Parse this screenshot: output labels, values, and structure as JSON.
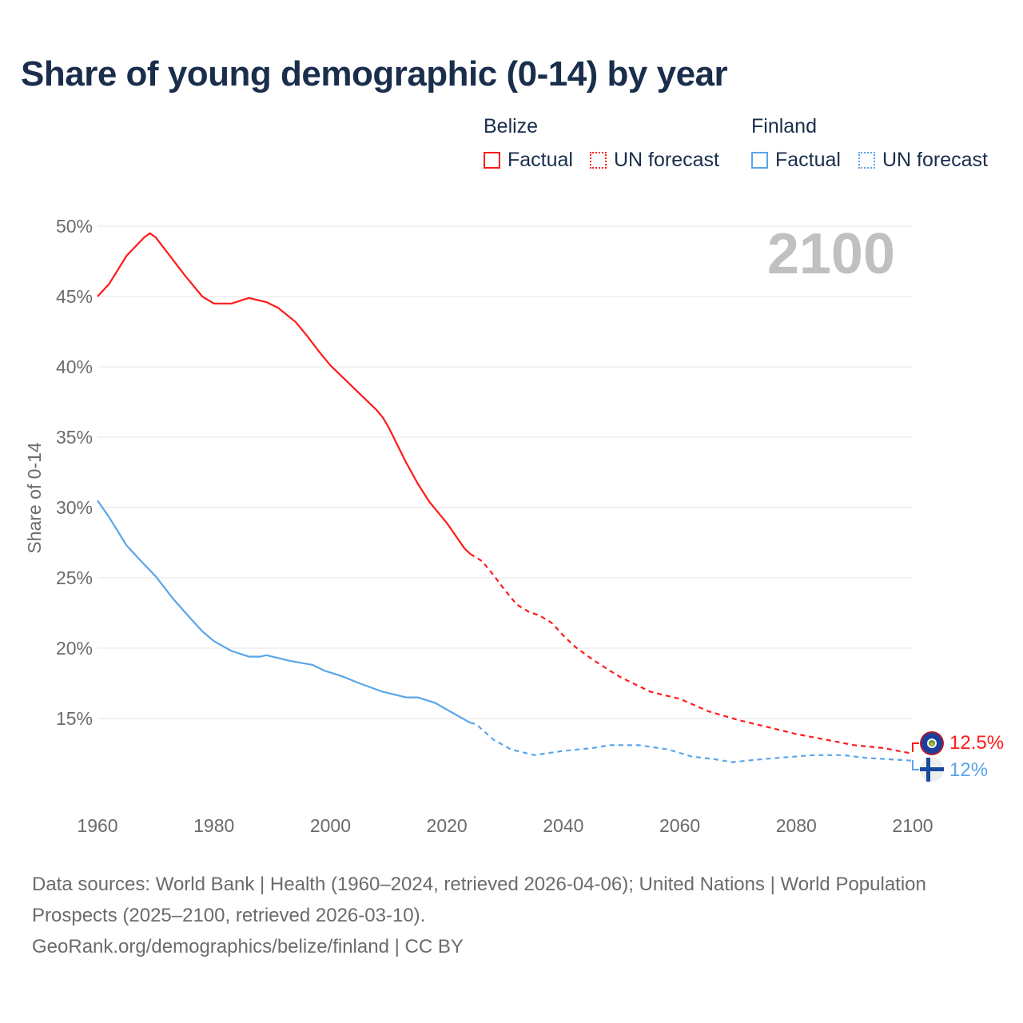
{
  "title": "Share of young demographic (0-14) by year",
  "legend": {
    "groups": [
      {
        "country": "Belize",
        "factual": "Factual",
        "forecast": "UN forecast",
        "color": "#ff1a1a"
      },
      {
        "country": "Finland",
        "factual": "Factual",
        "forecast": "UN forecast",
        "color": "#5aa5ea"
      }
    ]
  },
  "year_display": "2100",
  "end_labels": {
    "belize": "12.5%",
    "finland": "12%"
  },
  "source": {
    "line1": "Data sources: World Bank | Health (1960–2024, retrieved 2026-04-06); United Nations | World Population Prospects (2025–2100, retrieved 2026-03-10).",
    "line2": "GeoRank.org/demographics/belize/finland | CC BY"
  },
  "chart_data": {
    "type": "line",
    "title": "Share of young demographic (0-14) by year",
    "xlabel": "",
    "ylabel": "Share of 0-14",
    "xlim": [
      1960,
      2100
    ],
    "ylim": [
      10,
      50
    ],
    "x_ticks": [
      "1960",
      "1980",
      "2000",
      "2020",
      "2040",
      "2060",
      "2080",
      "2100"
    ],
    "y_ticks": [
      "15%",
      "20%",
      "25%",
      "30%",
      "35%",
      "40%",
      "45%",
      "50%"
    ],
    "grid": true,
    "legend_position": "top-right",
    "series": [
      {
        "name": "Belize",
        "color": "#ff1a1a",
        "forecast_from": 2024,
        "x": [
          1960,
          1962,
          1965,
          1968,
          1969,
          1970,
          1975,
          1978,
          1980,
          1983,
          1986,
          1989,
          1991,
          1994,
          1996,
          1998,
          2000,
          2005,
          2008,
          2009,
          2010,
          2013,
          2015,
          2017,
          2020,
          2021,
          2023,
          2024,
          2026,
          2028,
          2030,
          2032,
          2034,
          2036,
          2038,
          2040,
          2042,
          2045,
          2048,
          2050,
          2055,
          2060,
          2065,
          2070,
          2075,
          2080,
          2085,
          2090,
          2095,
          2100
        ],
        "y": [
          45.0,
          45.9,
          47.9,
          49.2,
          49.5,
          49.2,
          46.5,
          45.0,
          44.5,
          44.5,
          44.9,
          44.6,
          44.2,
          43.2,
          42.2,
          41.1,
          40.1,
          38.1,
          36.9,
          36.4,
          35.7,
          33.2,
          31.7,
          30.4,
          28.9,
          28.3,
          27.1,
          26.7,
          26.2,
          25.2,
          24.1,
          23.1,
          22.6,
          22.3,
          21.8,
          20.9,
          20.1,
          19.2,
          18.4,
          17.9,
          16.9,
          16.4,
          15.5,
          14.9,
          14.4,
          13.9,
          13.5,
          13.1,
          12.9,
          12.5
        ]
      },
      {
        "name": "Finland",
        "color": "#5aa5ea",
        "forecast_from": 2024,
        "x": [
          1960,
          1962,
          1965,
          1967,
          1970,
          1973,
          1976,
          1978,
          1980,
          1983,
          1986,
          1988,
          1989,
          1991,
          1993,
          1997,
          1999,
          2002,
          2005,
          2009,
          2013,
          2015,
          2018,
          2021,
          2024,
          2025,
          2028,
          2031,
          2035,
          2040,
          2045,
          2048,
          2053,
          2058,
          2062,
          2066,
          2069,
          2074,
          2080,
          2083,
          2088,
          2092,
          2100
        ],
        "y": [
          30.5,
          29.3,
          27.3,
          26.4,
          25.1,
          23.5,
          22.1,
          21.2,
          20.5,
          19.8,
          19.4,
          19.4,
          19.5,
          19.3,
          19.1,
          18.8,
          18.4,
          18.0,
          17.5,
          16.9,
          16.5,
          16.5,
          16.1,
          15.4,
          14.7,
          14.6,
          13.5,
          12.8,
          12.4,
          12.7,
          12.9,
          13.1,
          13.1,
          12.8,
          12.3,
          12.1,
          11.9,
          12.1,
          12.3,
          12.4,
          12.4,
          12.2,
          12.0
        ]
      }
    ]
  }
}
